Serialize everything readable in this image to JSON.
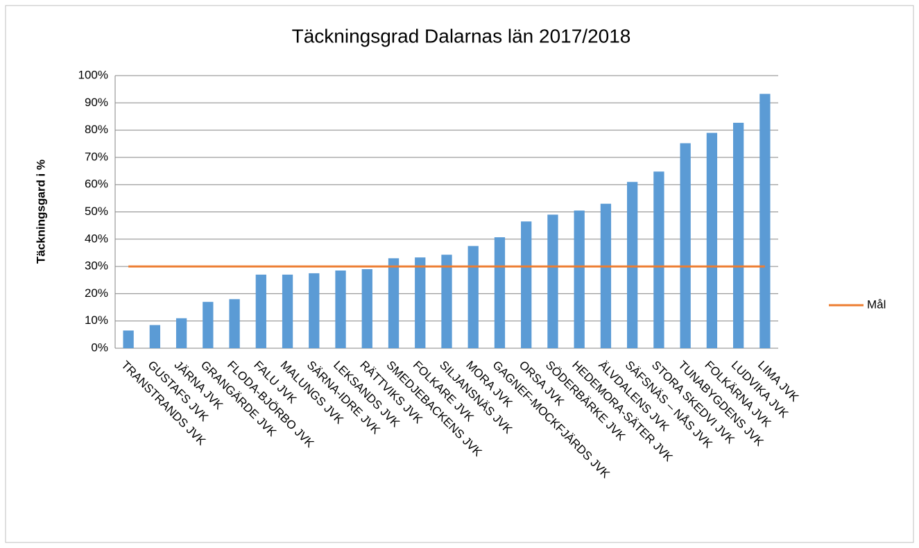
{
  "chart_data": {
    "type": "bar",
    "title": "Täckningsgrad Dalarnas län 2017/2018",
    "ylabel": "Täckningsgard i %",
    "categories": [
      "TRANSTRANDS JVK",
      "GUSTAFS JVK",
      "JÄRNA JVK",
      "GRANGÄRDE JVK",
      "FLODA-BJÖRBO JVK",
      "FALU JVK",
      "MALUNGS JVK",
      "SÄRNA-IDRE JVK",
      "LEKSANDS JVK",
      "RÄTTVIKS JVK",
      "SMEDJEBACKENS JVK",
      "FOLKARE JVK",
      "SILJANSNÄS JVK",
      "MORA JVK",
      "GAGNEF-MOCKFJÄRDS JVK",
      "ORSA JVK",
      "SÖDERBÄRKE JVK",
      "HEDEMORA-SÄTER JVK",
      "ÄLVDALENS JVK",
      "SÄFSNÄS – NÅS JVK",
      "STORA SKEDVI JVK",
      "TUNABYGDENS JVK",
      "FOLKÄRNA JVK",
      "LUDVIKA JVK",
      "LIMA JVK"
    ],
    "values": [
      6.5,
      8.5,
      11,
      17,
      18,
      27,
      27,
      27.5,
      28.5,
      29,
      33,
      33.3,
      34.3,
      37.5,
      40.7,
      46.5,
      49,
      50.5,
      53,
      61,
      64.8,
      75.2,
      79,
      82.7,
      93.3
    ],
    "color": "#5b9bd5",
    "series": [
      {
        "name": "Mål",
        "color": "#ed7d31",
        "values": [
          30,
          30,
          30,
          30,
          30,
          30,
          30,
          30,
          30,
          30,
          30,
          30,
          30,
          30,
          30,
          30,
          30,
          30,
          30,
          30,
          30,
          30,
          30,
          30,
          30
        ]
      }
    ],
    "ylim": [
      0,
      100
    ],
    "yticks": [
      {
        "value": 0,
        "label": "0%"
      },
      {
        "value": 10,
        "label": "10%"
      },
      {
        "value": 20,
        "label": "20%"
      },
      {
        "value": 30,
        "label": "30%"
      },
      {
        "value": 40,
        "label": "40%"
      },
      {
        "value": 50,
        "label": "50%"
      },
      {
        "value": 60,
        "label": "60%"
      },
      {
        "value": 70,
        "label": "70%"
      },
      {
        "value": 80,
        "label": "80%"
      },
      {
        "value": 90,
        "label": "90%"
      },
      {
        "value": 100,
        "label": "100%"
      }
    ],
    "grid": true,
    "legend": "right"
  }
}
